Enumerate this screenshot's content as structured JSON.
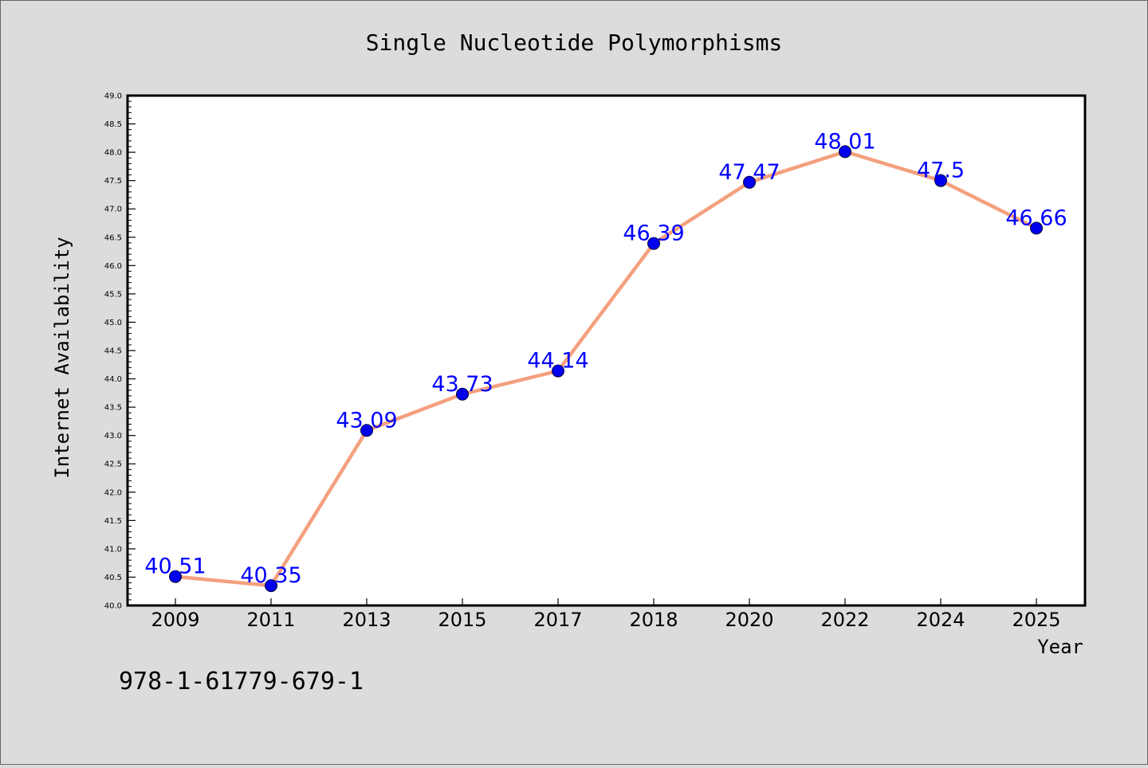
{
  "chart_data": {
    "type": "line",
    "title": "Single Nucleotide Polymorphisms",
    "xlabel": "Year",
    "ylabel": "Internet Availability",
    "categories": [
      "2009",
      "2011",
      "2013",
      "2015",
      "2017",
      "2018",
      "2020",
      "2022",
      "2024",
      "2025"
    ],
    "series": [
      {
        "values": [
          40.51,
          40.35,
          43.09,
          43.73,
          44.14,
          46.39,
          47.47,
          48.01,
          47.5,
          46.66
        ],
        "labels": [
          "40.51",
          "40.35",
          "43.09",
          "43.73",
          "44.14",
          "46.39",
          "47.47",
          "48.01",
          "47.5",
          "46.66"
        ]
      }
    ],
    "ylim": [
      40.0,
      49.0
    ],
    "y_ticks": [
      "40.0",
      "40.5",
      "41.0",
      "41.5",
      "42.0",
      "42.5",
      "43.0",
      "43.5",
      "44.0",
      "44.5",
      "45.0",
      "45.5",
      "46.0",
      "46.5",
      "47.0",
      "47.5",
      "48.0",
      "48.5",
      "49.0"
    ],
    "grid": false,
    "colors": {
      "line": "#f4a07e",
      "marker": "#0000ee",
      "data_label": "#0000ff",
      "background": "#dcdcdc",
      "plot_background": "#ffffff"
    }
  },
  "footer_note": "978-1-61779-679-1"
}
